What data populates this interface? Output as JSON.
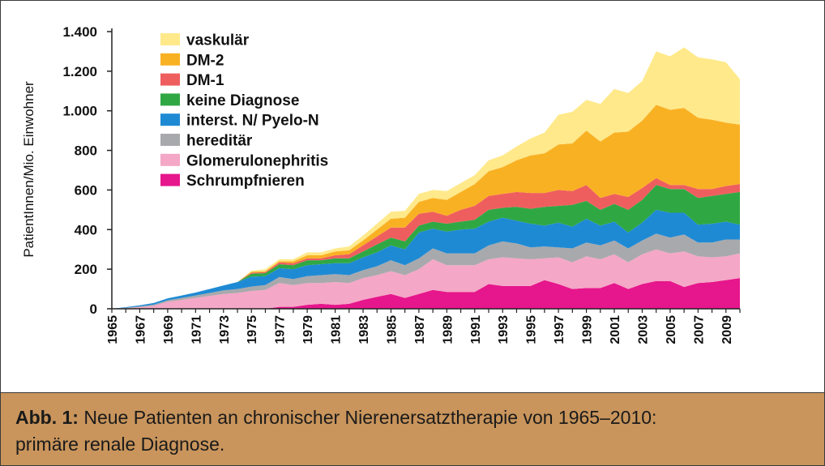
{
  "caption": {
    "lead": "Abb. 1:",
    "line1": " Neue Patienten an chronischer Nierenersatztherapie von 1965–2010:",
    "line2": "primäre renale Diagnose."
  },
  "chart_data": {
    "type": "area",
    "stacked": true,
    "ylabel": "PatientInnen/Mio. Einwohner",
    "ylim": [
      0,
      1400
    ],
    "yticks": [
      0,
      200,
      400,
      600,
      800,
      1000,
      1200,
      1400
    ],
    "ytick_labels": [
      "0",
      "200",
      "400",
      "600",
      "800",
      "1.000",
      "1.200",
      "1.400"
    ],
    "xlim": [
      1965,
      2010
    ],
    "xticks": [
      1965,
      1967,
      1969,
      1971,
      1973,
      1975,
      1977,
      1979,
      1981,
      1983,
      1985,
      1987,
      1989,
      1991,
      1993,
      1995,
      1997,
      1999,
      2001,
      2003,
      2005,
      2007,
      2009
    ],
    "xtick_labels": [
      "1965",
      "1967",
      "1969",
      "1971",
      "1973",
      "1975",
      "1977",
      "1979",
      "1981",
      "1983",
      "1985",
      "1987",
      "1989",
      "1991",
      "1993",
      "1995",
      "1997",
      "1999",
      "2001",
      "2003",
      "2005",
      "2007",
      "2009"
    ],
    "legend_placement": "top-left",
    "x": [
      1965,
      1966,
      1967,
      1968,
      1969,
      1970,
      1971,
      1972,
      1973,
      1974,
      1975,
      1976,
      1977,
      1978,
      1979,
      1980,
      1981,
      1982,
      1983,
      1984,
      1985,
      1986,
      1987,
      1988,
      1989,
      1990,
      1991,
      1992,
      1993,
      1994,
      1995,
      1996,
      1997,
      1998,
      1999,
      2000,
      2001,
      2002,
      2003,
      2004,
      2005,
      2006,
      2007,
      2008,
      2009,
      2010
    ],
    "series": [
      {
        "name": "Schrumpfnieren",
        "color": "#e6168c",
        "values": [
          0,
          0,
          0,
          0,
          0,
          0,
          0,
          0,
          0,
          0,
          0,
          0,
          10,
          10,
          20,
          25,
          20,
          25,
          45,
          60,
          75,
          55,
          75,
          95,
          85,
          85,
          85,
          125,
          115,
          115,
          115,
          145,
          125,
          100,
          105,
          105,
          130,
          100,
          125,
          140,
          140,
          110,
          130,
          135,
          145,
          155
        ]
      },
      {
        "name": "Glomerulonephritis",
        "color": "#f4a7c6",
        "values": [
          0,
          3,
          8,
          15,
          35,
          45,
          55,
          65,
          75,
          80,
          90,
          95,
          120,
          110,
          110,
          105,
          115,
          105,
          110,
          110,
          115,
          115,
          125,
          155,
          135,
          135,
          135,
          125,
          145,
          140,
          135,
          110,
          135,
          135,
          160,
          145,
          145,
          135,
          150,
          160,
          140,
          180,
          135,
          125,
          120,
          125
        ]
      },
      {
        "name": "hereditär",
        "color": "#a8a9ad",
        "values": [
          0,
          2,
          4,
          6,
          8,
          10,
          12,
          15,
          18,
          20,
          22,
          25,
          30,
          30,
          35,
          40,
          40,
          40,
          40,
          45,
          55,
          50,
          55,
          55,
          60,
          60,
          60,
          70,
          80,
          75,
          60,
          60,
          50,
          70,
          70,
          70,
          70,
          70,
          70,
          80,
          80,
          85,
          70,
          75,
          85,
          70
        ]
      },
      {
        "name": "interst. N/ Pyelo-N",
        "color": "#1f8ad4",
        "values": [
          0,
          3,
          5,
          8,
          10,
          12,
          15,
          20,
          25,
          35,
          50,
          45,
          45,
          50,
          55,
          55,
          55,
          60,
          65,
          70,
          75,
          80,
          130,
          100,
          110,
          120,
          125,
          120,
          120,
          115,
          120,
          105,
          125,
          110,
          120,
          100,
          95,
          80,
          90,
          120,
          125,
          110,
          90,
          95,
          90,
          75
        ]
      },
      {
        "name": "keine Diagnose",
        "color": "#2fa844",
        "values": [
          0,
          0,
          0,
          0,
          0,
          0,
          0,
          0,
          0,
          0,
          15,
          15,
          20,
          20,
          25,
          20,
          25,
          25,
          30,
          40,
          40,
          40,
          35,
          35,
          40,
          40,
          45,
          60,
          50,
          70,
          75,
          95,
          85,
          110,
          90,
          80,
          90,
          115,
          115,
          125,
          120,
          120,
          135,
          140,
          140,
          165
        ]
      },
      {
        "name": "DM-1",
        "color": "#ef5e5e",
        "values": [
          0,
          0,
          0,
          0,
          0,
          0,
          0,
          0,
          0,
          0,
          5,
          5,
          10,
          10,
          10,
          10,
          15,
          20,
          30,
          40,
          50,
          70,
          60,
          50,
          40,
          60,
          70,
          70,
          70,
          75,
          80,
          70,
          80,
          70,
          80,
          60,
          50,
          65,
          60,
          35,
          20,
          20,
          45,
          35,
          40,
          40
        ]
      },
      {
        "name": "DM-2",
        "color": "#f9b124",
        "values": [
          0,
          0,
          0,
          0,
          0,
          0,
          0,
          0,
          0,
          0,
          5,
          5,
          5,
          10,
          15,
          15,
          20,
          20,
          25,
          35,
          45,
          50,
          60,
          70,
          80,
          90,
          110,
          125,
          135,
          160,
          190,
          200,
          230,
          240,
          275,
          285,
          310,
          330,
          340,
          370,
          380,
          390,
          360,
          350,
          320,
          300
        ]
      },
      {
        "name": "vaskulär",
        "color": "#ffe98a",
        "values": [
          0,
          0,
          0,
          0,
          0,
          0,
          0,
          0,
          0,
          0,
          5,
          10,
          10,
          10,
          15,
          15,
          15,
          20,
          25,
          30,
          35,
          35,
          40,
          40,
          45,
          45,
          45,
          55,
          60,
          70,
          85,
          105,
          150,
          160,
          155,
          190,
          220,
          195,
          200,
          270,
          270,
          305,
          305,
          305,
          305,
          230
        ]
      }
    ]
  }
}
